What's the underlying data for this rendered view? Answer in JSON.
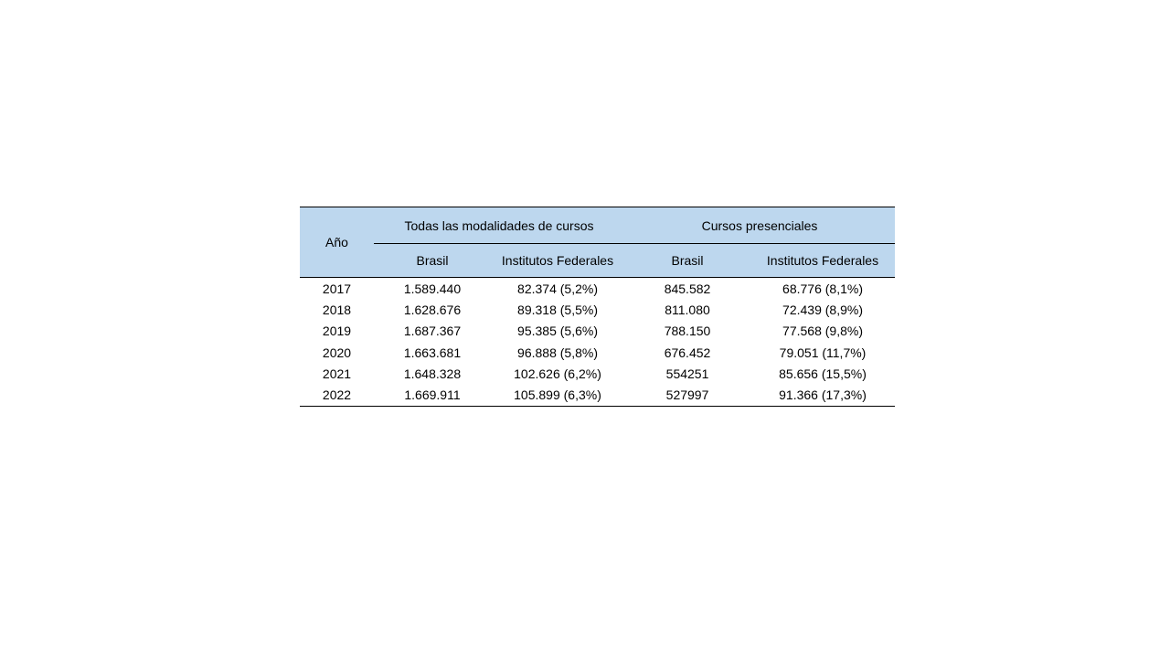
{
  "table": {
    "header": {
      "col_year": "Año",
      "group_all": "Todas las modalidades de cursos",
      "group_presencial": "Cursos presenciales",
      "sub_brasil_all": "Brasil",
      "sub_if_all": "Institutos Federales",
      "sub_brasil_pres": "Brasil",
      "sub_if_pres": "Institutos Federales"
    },
    "rows": [
      [
        "2017",
        "1.589.440",
        "82.374 (5,2%)",
        "845.582",
        "68.776 (8,1%)"
      ],
      [
        "2018",
        "1.628.676",
        "89.318 (5,5%)",
        "811.080",
        "72.439 (8,9%)"
      ],
      [
        "2019",
        "1.687.367",
        "95.385 (5,6%)",
        "788.150",
        "77.568 (9,8%)"
      ],
      [
        "2020",
        "1.663.681",
        "96.888 (5,8%)",
        "676.452",
        "79.051 (11,7%)"
      ],
      [
        "2021",
        "1.648.328",
        "102.626 (6,2%)",
        "554251",
        "85.656 (15,5%)"
      ],
      [
        "2022",
        "1.669.911",
        "105.899 (6,3%)",
        "527997",
        "91.366 (17,3%)"
      ]
    ],
    "colors": {
      "header_bg": "#bdd7ee",
      "border": "#000000",
      "text": "#000000",
      "page_bg": "#ffffff"
    }
  }
}
